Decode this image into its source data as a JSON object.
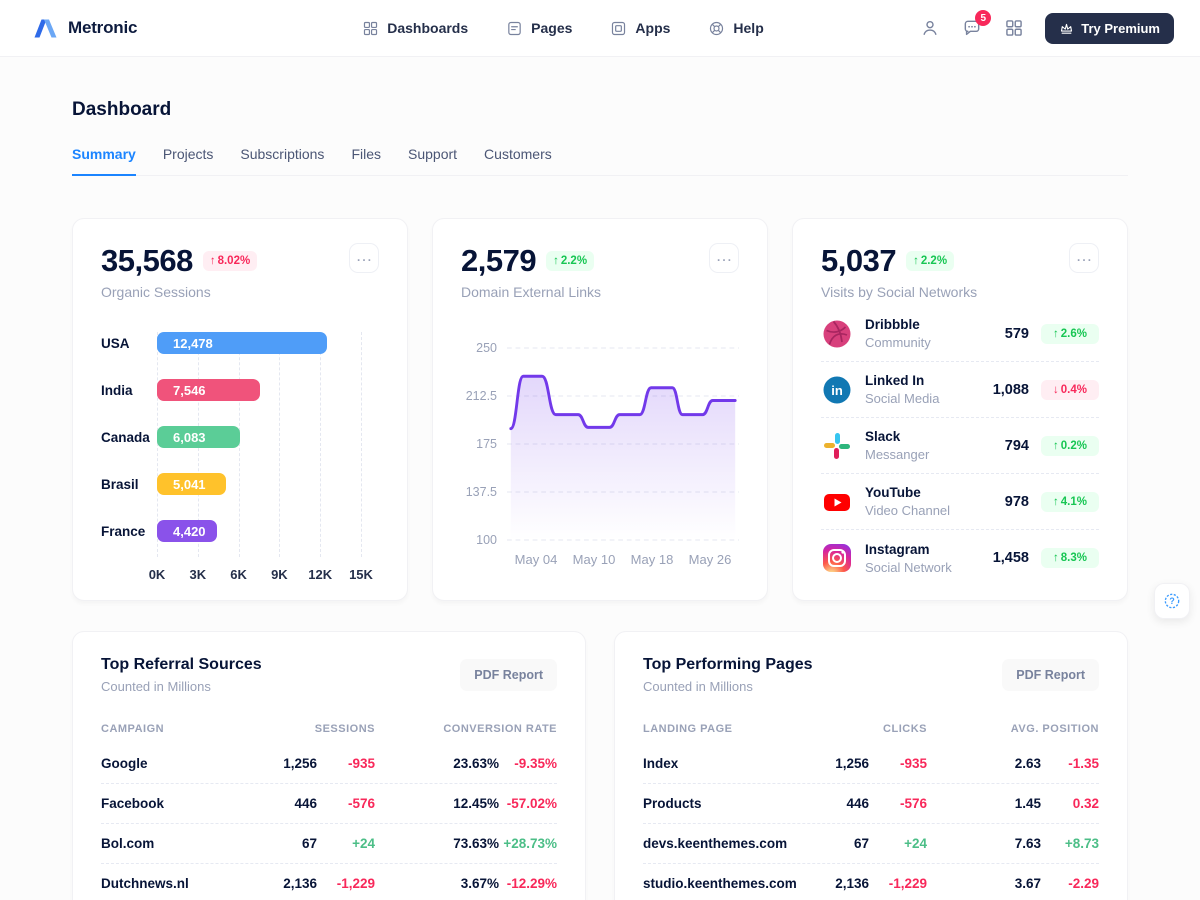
{
  "header": {
    "brand": "Metronic",
    "nav": [
      {
        "label": "Dashboards",
        "icon": "grid-icon"
      },
      {
        "label": "Pages",
        "icon": "pages-icon"
      },
      {
        "label": "Apps",
        "icon": "apps-icon"
      },
      {
        "label": "Help",
        "icon": "help-icon"
      }
    ],
    "notification_count": "5",
    "try_premium_label": "Try Premium"
  },
  "page": {
    "title": "Dashboard",
    "tabs": [
      "Summary",
      "Projects",
      "Subscriptions",
      "Files",
      "Support",
      "Customers"
    ],
    "active_tab": "Summary"
  },
  "stats": {
    "organic": {
      "value": "35,568",
      "arrow": "↑",
      "delta": "8.02%",
      "tone": "danger",
      "label": "Organic Sessions"
    },
    "links": {
      "value": "2,579",
      "arrow": "↑",
      "delta": "2.2%",
      "tone": "success",
      "label": "Domain External Links"
    },
    "visits": {
      "value": "5,037",
      "arrow": "↑",
      "delta": "2.2%",
      "tone": "success",
      "label": "Visits by Social Networks"
    }
  },
  "social": [
    {
      "name": "Dribbble",
      "category": "Community",
      "value": "579",
      "arrow": "↑",
      "delta": "2.6%",
      "tone": "success",
      "icon": "dribbble-icon"
    },
    {
      "name": "Linked In",
      "category": "Social Media",
      "value": "1,088",
      "arrow": "↓",
      "delta": "0.4%",
      "tone": "danger",
      "icon": "linkedin-icon"
    },
    {
      "name": "Slack",
      "category": "Messanger",
      "value": "794",
      "arrow": "↑",
      "delta": "0.2%",
      "tone": "success",
      "icon": "slack-icon"
    },
    {
      "name": "YouTube",
      "category": "Video Channel",
      "value": "978",
      "arrow": "↑",
      "delta": "4.1%",
      "tone": "success",
      "icon": "youtube-icon"
    },
    {
      "name": "Instagram",
      "category": "Social Network",
      "value": "1,458",
      "arrow": "↑",
      "delta": "8.3%",
      "tone": "success",
      "icon": "instagram-icon"
    }
  ],
  "tables": [
    {
      "title": "Top Referral Sources",
      "subtitle": "Counted in Millions",
      "button": "PDF Report",
      "columns": [
        "CAMPAIGN",
        "SESSIONS",
        "CONVERSION RATE"
      ],
      "rows": [
        {
          "name": "Google",
          "v1": "1,256",
          "d1": "-935",
          "t1": "danger",
          "v2": "23.63%",
          "d2": "-9.35%",
          "t2": "danger"
        },
        {
          "name": "Facebook",
          "v1": "446",
          "d1": "-576",
          "t1": "danger",
          "v2": "12.45%",
          "d2": "-57.02%",
          "t2": "danger"
        },
        {
          "name": "Bol.com",
          "v1": "67",
          "d1": "+24",
          "t1": "success",
          "v2": "73.63%",
          "d2": "+28.73%",
          "t2": "success"
        },
        {
          "name": "Dutchnews.nl",
          "v1": "2,136",
          "d1": "-1,229",
          "t1": "danger",
          "v2": "3.67%",
          "d2": "-12.29%",
          "t2": "danger"
        }
      ]
    },
    {
      "title": "Top Performing Pages",
      "subtitle": "Counted in Millions",
      "button": "PDF Report",
      "columns": [
        "LANDING PAGE",
        "CLICKS",
        "AVG. POSITION"
      ],
      "rows": [
        {
          "name": "Index",
          "v1": "1,256",
          "d1": "-935",
          "t1": "danger",
          "v2": "2.63",
          "d2": "-1.35",
          "t2": "danger"
        },
        {
          "name": "Products",
          "v1": "446",
          "d1": "-576",
          "t1": "danger",
          "v2": "1.45",
          "d2": "0.32",
          "t2": "danger"
        },
        {
          "name": "devs.keenthemes.com",
          "v1": "67",
          "d1": "+24",
          "t1": "success",
          "v2": "7.63",
          "d2": "+8.73",
          "t2": "success"
        },
        {
          "name": "studio.keenthemes.com",
          "v1": "2,136",
          "d1": "-1,229",
          "t1": "danger",
          "v2": "3.67",
          "d2": "-2.29",
          "t2": "danger"
        }
      ]
    }
  ],
  "chart_data": [
    {
      "type": "bar",
      "orientation": "horizontal",
      "title": "Organic Sessions by Country",
      "categories": [
        "USA",
        "India",
        "Canada",
        "Brasil",
        "France"
      ],
      "values": [
        12478,
        7546,
        6083,
        5041,
        4420
      ],
      "value_labels": [
        "12,478",
        "7,546",
        "6,083",
        "5,041",
        "4,420"
      ],
      "colors": [
        "#4f9df8",
        "#f0537b",
        "#5bcd97",
        "#ffc22b",
        "#8a52ea"
      ],
      "x_ticks": [
        "0K",
        "3K",
        "6K",
        "9K",
        "12K",
        "15K"
      ],
      "xlim": [
        0,
        15000
      ],
      "grid": "vertical-dashed"
    },
    {
      "type": "line",
      "title": "Domain External Links over May",
      "line_color": "#7239ea",
      "fill": "purple-gradient-fade",
      "ylim": [
        100,
        250
      ],
      "y_ticks": [
        "250",
        "212.5",
        "175",
        "137.5",
        "100"
      ],
      "x_ticks": [
        "May 04",
        "May 10",
        "May 18",
        "May 26"
      ],
      "series": [
        {
          "name": "Domain External Links",
          "points": [
            [
              0,
              187
            ],
            [
              0.055,
              228
            ],
            [
              0.14,
              228
            ],
            [
              0.2,
              198
            ],
            [
              0.3,
              198
            ],
            [
              0.345,
              188
            ],
            [
              0.44,
              188
            ],
            [
              0.485,
              198
            ],
            [
              0.575,
              198
            ],
            [
              0.625,
              219
            ],
            [
              0.72,
              219
            ],
            [
              0.765,
              198
            ],
            [
              0.855,
              198
            ],
            [
              0.9,
              209
            ],
            [
              1,
              209
            ]
          ]
        }
      ],
      "grid": "horizontal-dashed"
    }
  ],
  "colors": {
    "primary": "#1b84ff",
    "danger": "#f8285a",
    "success": "#17c653",
    "dark_text": "#071437",
    "muted_text": "#99a1b7",
    "line": "#7239ea",
    "dark_button": "#252f4a"
  }
}
